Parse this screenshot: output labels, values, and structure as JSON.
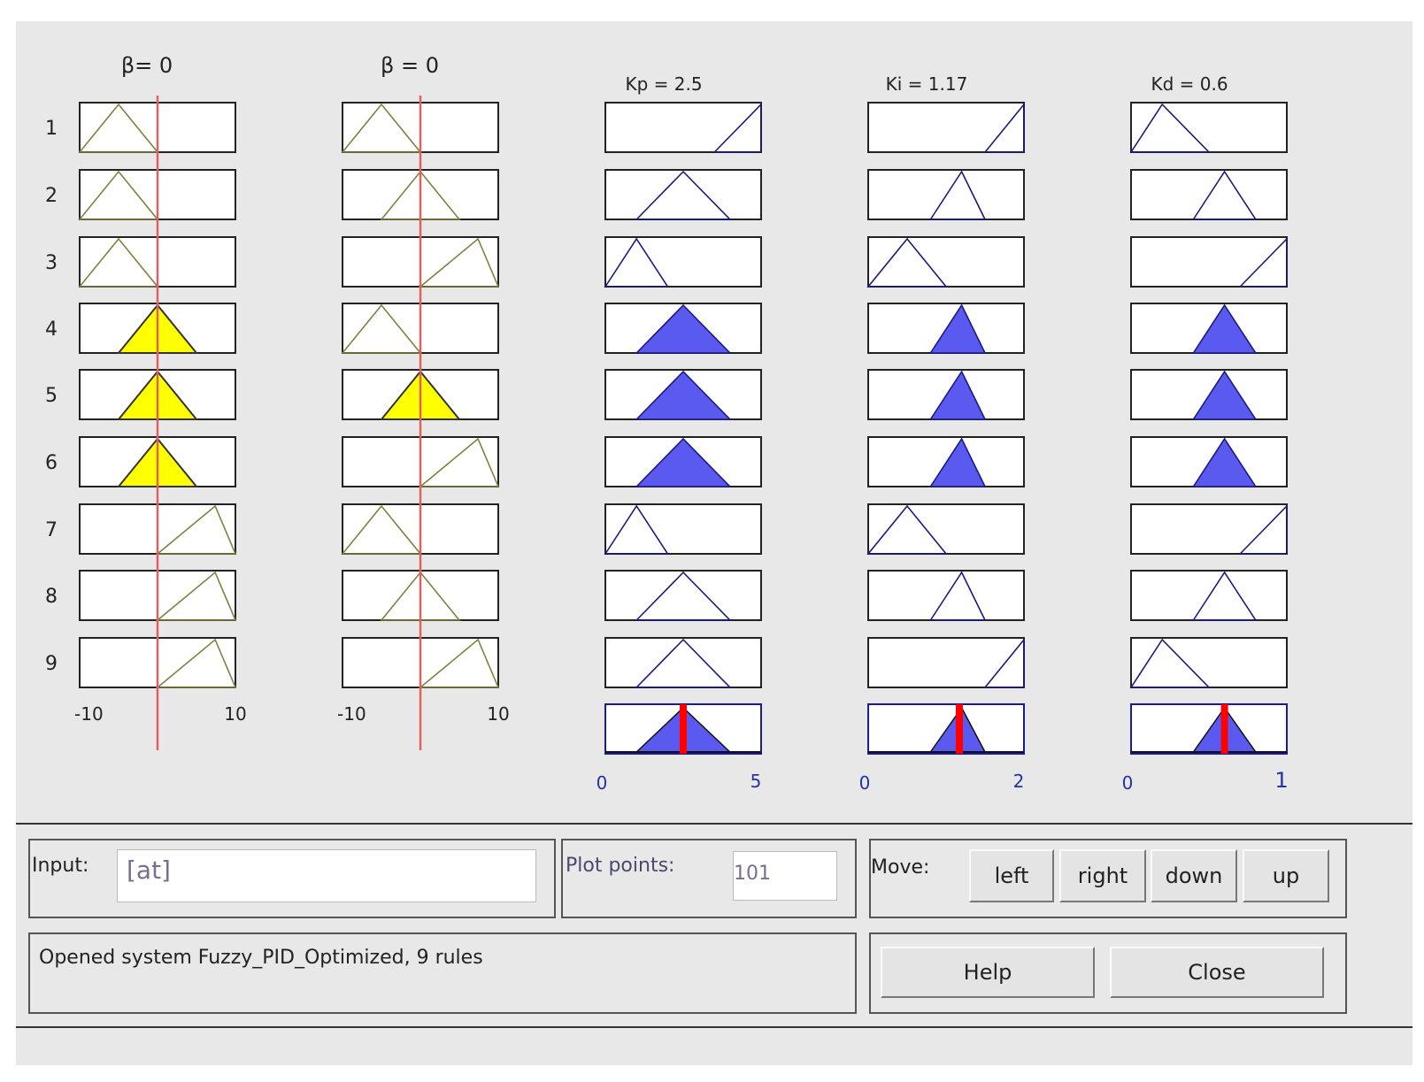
{
  "inputs": [
    {
      "label": "β= 0",
      "range_min": "-10",
      "range_max": "10",
      "current_value": 0
    },
    {
      "label": "β = 0",
      "range_min": "-10",
      "range_max": "10",
      "current_value": 0
    }
  ],
  "outputs": [
    {
      "label": "Kp = 2.5",
      "range_min": "0",
      "range_max": "5",
      "current_value": 2.5
    },
    {
      "label": "Ki = 1.17",
      "range_min": "0",
      "range_max": "2",
      "current_value": 1.17
    },
    {
      "label": "Kd = 0.6",
      "range_min": "0",
      "range_max": "1",
      "current_value": 0.6
    }
  ],
  "rules": [
    "1",
    "2",
    "3",
    "4",
    "5",
    "6",
    "7",
    "8",
    "9"
  ],
  "membership": {
    "input1": [
      "N",
      "N",
      "N",
      "Z",
      "Z",
      "Z",
      "P",
      "P",
      "P"
    ],
    "input2": [
      "N",
      "Z",
      "P",
      "N",
      "Z",
      "P",
      "N",
      "Z",
      "P"
    ],
    "kp": [
      "H",
      "M",
      "L",
      "M",
      "M",
      "M",
      "L",
      "M",
      "M"
    ],
    "ki": [
      "H",
      "M",
      "L",
      "M",
      "M",
      "M",
      "L",
      "M",
      "H"
    ],
    "kd": [
      "L",
      "M",
      "H",
      "M",
      "M",
      "M",
      "H",
      "M",
      "L"
    ]
  },
  "fired_rules": [
    4,
    5,
    6
  ],
  "input_field": {
    "label": "Input:",
    "value": "[at]"
  },
  "plot_points": {
    "label": "Plot points:",
    "value": "101"
  },
  "move": {
    "label": "Move:",
    "buttons": [
      "left",
      "right",
      "down",
      "up"
    ]
  },
  "status": "Opened system Fuzzy_PID_Optimized, 9 rules",
  "help_label": "Help",
  "close_label": "Close",
  "colors": {
    "input_mf": "#808040",
    "input_fill": "#ffff00",
    "output_mf": "#1a1a80",
    "output_fill": "#5a5af0",
    "value_line": "#e06060",
    "output_value": "#ff0000",
    "axis_text": "#2233aa"
  }
}
